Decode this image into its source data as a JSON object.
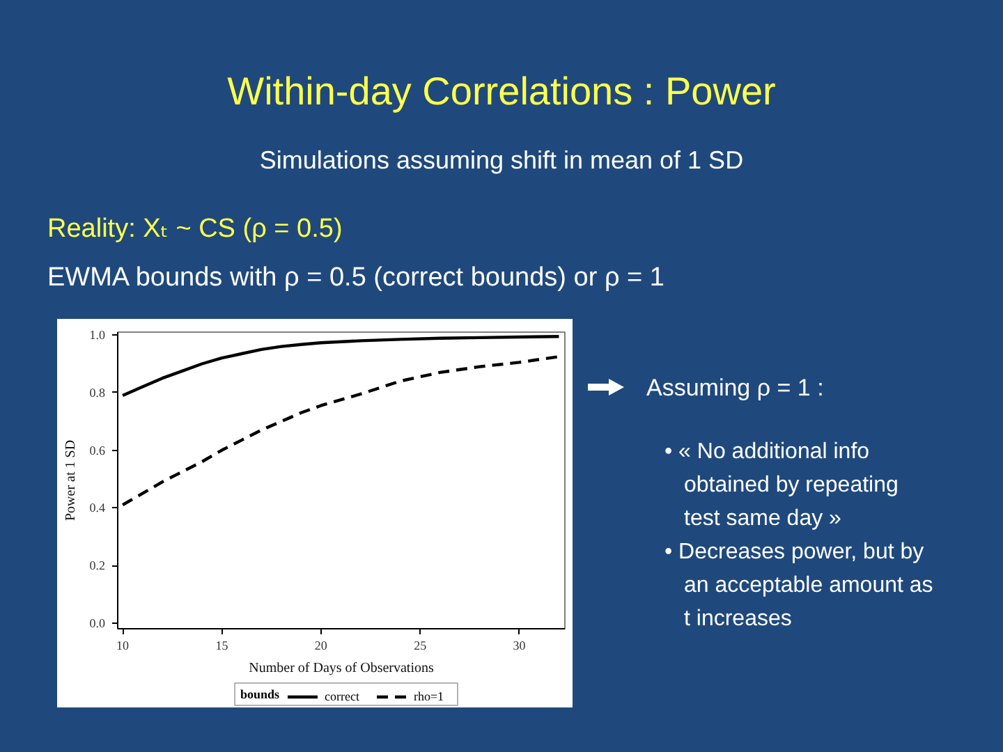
{
  "chart_data": {
    "type": "line",
    "title": "Within-day Correlations : Power",
    "subtitle": "Simulations assuming shift in mean of 1 SD",
    "annotations": [
      "Reality: Xₜ ~ CS (ρ = 0.5)",
      "EWMA bounds with ρ = 0.5 (correct bounds) or ρ = 1",
      "Assuming ρ = 1 :",
      "• « No additional info obtained by repeating test same day »",
      "• Decreases power, but by an acceptable amount as t increases"
    ],
    "xlabel": "Number of Days of Observations",
    "ylabel": "Power at 1 SD",
    "legend_title": "bounds",
    "legend": "bottom",
    "xlim": [
      9.75,
      32.3
    ],
    "ylim": [
      -0.02,
      1.01
    ],
    "xticks": [
      10,
      15,
      20,
      25,
      30
    ],
    "yticks": [
      {
        "value": 0,
        "label": "0.0"
      },
      {
        "value": 0.2,
        "label": "0.2"
      },
      {
        "value": 0.4,
        "label": "0.4"
      },
      {
        "value": 0.6,
        "label": "0.6"
      },
      {
        "value": 0.8,
        "label": "0.8"
      },
      {
        "value": 1,
        "label": "1.0"
      }
    ],
    "x": [
      10,
      11,
      12,
      13,
      14,
      15,
      16,
      17,
      18,
      19,
      20,
      22,
      24,
      26,
      28,
      30,
      32
    ],
    "series": [
      {
        "name": "correct",
        "color": "#000000",
        "line_style": "solid",
        "values": [
          0.79,
          0.82,
          0.85,
          0.875,
          0.9,
          0.92,
          0.935,
          0.95,
          0.96,
          0.967,
          0.973,
          0.98,
          0.985,
          0.989,
          0.991,
          0.993,
          0.995
        ]
      },
      {
        "name": "rho=1",
        "color": "#000000",
        "line_style": "dashed",
        "values": [
          0.41,
          0.45,
          0.49,
          0.525,
          0.56,
          0.6,
          0.635,
          0.67,
          0.7,
          0.73,
          0.755,
          0.795,
          0.84,
          0.87,
          0.89,
          0.905,
          0.925
        ]
      }
    ]
  }
}
